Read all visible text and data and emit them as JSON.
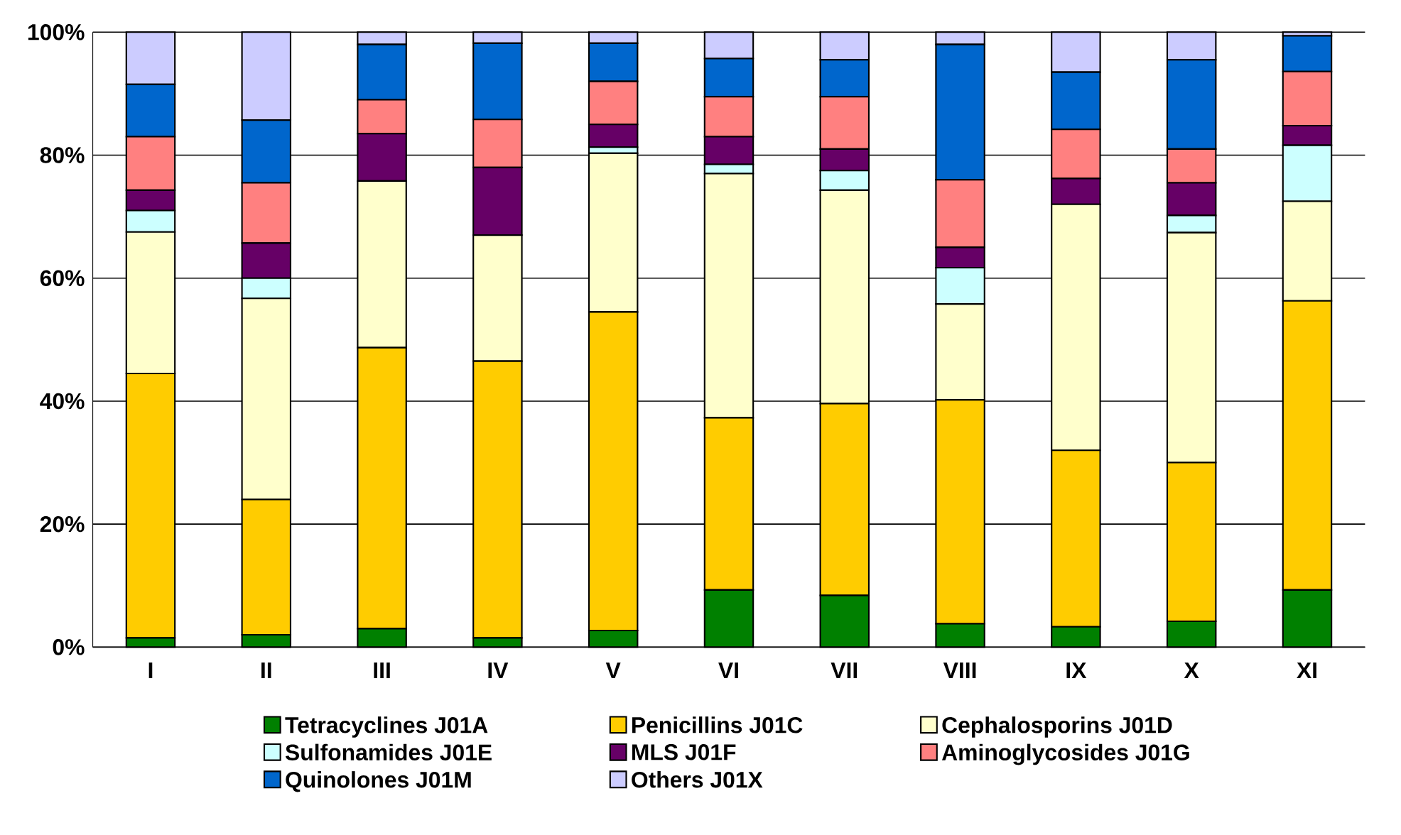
{
  "chart_data": {
    "type": "bar",
    "stacked": true,
    "categories": [
      "I",
      "II",
      "III",
      "IV",
      "V",
      "VI",
      "VII",
      "VIII",
      "IX",
      "X",
      "XI"
    ],
    "series": [
      {
        "name": "Tetracyclines J01A",
        "color": "#008000",
        "values": [
          1.5,
          2,
          3,
          1.5,
          2.7,
          9.3,
          8.4,
          3.8,
          3.3,
          4.2,
          9.3
        ]
      },
      {
        "name": "Penicillins J01C",
        "color": "#ffcc00",
        "values": [
          43,
          22,
          45.7,
          45,
          51.8,
          28,
          31.2,
          36.4,
          28.7,
          25.8,
          47
        ]
      },
      {
        "name": "Cephalosporins J01D",
        "color": "#ffffcc",
        "values": [
          23,
          32.7,
          27.1,
          20.5,
          25.8,
          39.7,
          34.7,
          15.6,
          40,
          37.4,
          16.2
        ]
      },
      {
        "name": "Sulfonamides J01E",
        "color": "#ccffff",
        "values": [
          3.5,
          3.3,
          0,
          0,
          1,
          1.5,
          3.2,
          5.9,
          0,
          2.8,
          9.1
        ]
      },
      {
        "name": "MLS J01F",
        "color": "#660066",
        "values": [
          3.3,
          5.7,
          7.7,
          11,
          3.7,
          4.5,
          3.5,
          3.3,
          4.2,
          5.3,
          3.2
        ]
      },
      {
        "name": "Aminoglycosides J01G",
        "color": "#ff8080",
        "values": [
          8.7,
          9.8,
          5.5,
          7.8,
          7,
          6.5,
          8.5,
          11,
          8,
          5.5,
          8.8
        ]
      },
      {
        "name": "Quinolones J01M",
        "color": "#0066cc",
        "values": [
          8.5,
          10.2,
          9,
          12.4,
          6.2,
          6.2,
          6,
          22,
          9.3,
          14.5,
          5.8
        ]
      },
      {
        "name": "Others J01X",
        "color": "#ccccff",
        "values": [
          8.5,
          14.3,
          2,
          1.8,
          1.8,
          4.3,
          4.5,
          2,
          6.5,
          4.5,
          0.6
        ]
      }
    ],
    "ylim": [
      0,
      100
    ],
    "yticks": [
      {
        "value": 0,
        "label": "0%"
      },
      {
        "value": 20,
        "label": "20%"
      },
      {
        "value": 40,
        "label": "40%"
      },
      {
        "value": 60,
        "label": "60%"
      },
      {
        "value": 80,
        "label": "80%"
      },
      {
        "value": 100,
        "label": "100%"
      }
    ],
    "grid": "y",
    "legend": "bottom"
  }
}
